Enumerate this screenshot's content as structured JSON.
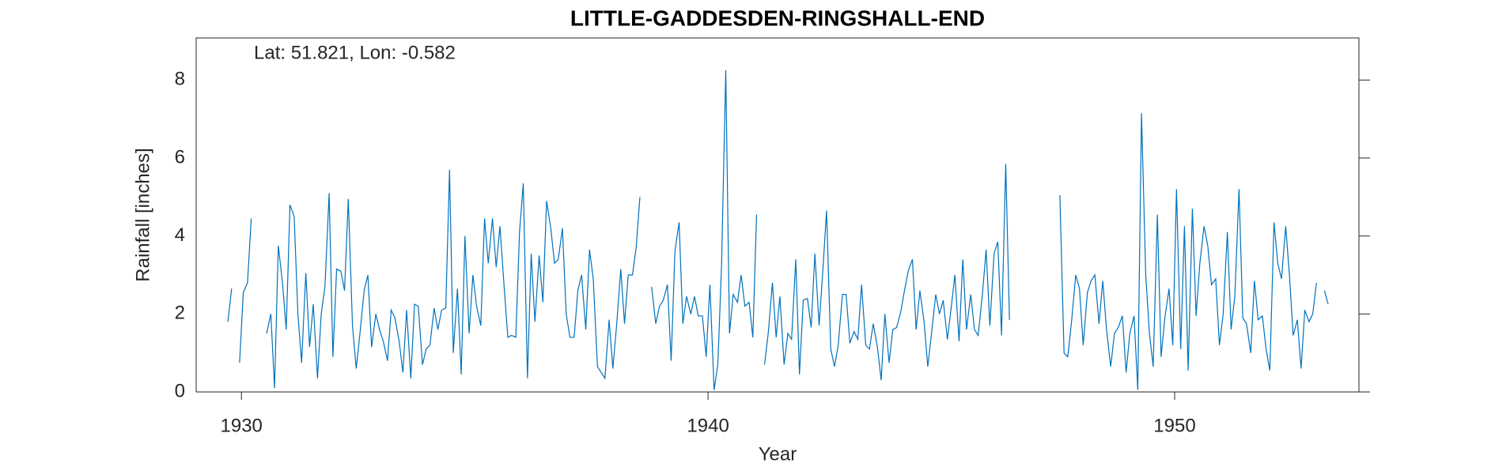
{
  "chart_data": {
    "type": "line",
    "title": "LITTLE-GADDESDEN-RINGSHALL-END",
    "annotation": "Lat: 51.821, Lon: -0.582",
    "x_label": "Year",
    "y_label": "Rainfall [inches]",
    "xlim": [
      1929.03,
      1953.95
    ],
    "ylim": [
      0,
      9.08
    ],
    "xticks": [
      1930,
      1940,
      1950
    ],
    "yticks": [
      0,
      2,
      4,
      6,
      8
    ],
    "grid": false,
    "x": [
      1929.71,
      1929.79,
      1929.88,
      1929.96,
      1930.04,
      1930.13,
      1930.21,
      1930.29,
      1930.38,
      1930.46,
      1930.54,
      1930.63,
      1930.71,
      1930.79,
      1930.88,
      1930.96,
      1931.04,
      1931.13,
      1931.21,
      1931.29,
      1931.38,
      1931.46,
      1931.54,
      1931.63,
      1931.71,
      1931.79,
      1931.88,
      1931.96,
      1932.04,
      1932.13,
      1932.21,
      1932.29,
      1932.38,
      1932.46,
      1932.54,
      1932.63,
      1932.71,
      1932.79,
      1932.88,
      1932.96,
      1933.04,
      1933.13,
      1933.21,
      1933.29,
      1933.38,
      1933.46,
      1933.54,
      1933.63,
      1933.71,
      1933.79,
      1933.88,
      1933.96,
      1934.04,
      1934.13,
      1934.21,
      1934.29,
      1934.38,
      1934.46,
      1934.54,
      1934.63,
      1934.71,
      1934.79,
      1934.88,
      1934.96,
      1935.04,
      1935.13,
      1935.21,
      1935.29,
      1935.38,
      1935.46,
      1935.54,
      1935.63,
      1935.71,
      1935.79,
      1935.88,
      1935.96,
      1936.04,
      1936.13,
      1936.21,
      1936.29,
      1936.38,
      1936.46,
      1936.54,
      1936.63,
      1936.71,
      1936.79,
      1936.88,
      1936.96,
      1937.04,
      1937.13,
      1937.21,
      1937.29,
      1937.38,
      1937.46,
      1937.54,
      1937.63,
      1937.71,
      1937.79,
      1937.88,
      1937.96,
      1938.04,
      1938.13,
      1938.21,
      1938.29,
      1938.38,
      1938.46,
      1938.54,
      1938.63,
      1938.71,
      1938.79,
      1938.88,
      1938.96,
      1939.04,
      1939.13,
      1939.21,
      1939.29,
      1939.38,
      1939.46,
      1939.54,
      1939.63,
      1939.71,
      1939.79,
      1939.88,
      1939.96,
      1940.04,
      1940.13,
      1940.21,
      1940.29,
      1940.38,
      1940.46,
      1940.54,
      1940.63,
      1940.71,
      1940.79,
      1940.88,
      1940.96,
      1941.04,
      1941.13,
      1941.21,
      1941.29,
      1941.38,
      1941.46,
      1941.54,
      1941.63,
      1941.71,
      1941.79,
      1941.88,
      1941.96,
      1942.04,
      1942.13,
      1942.21,
      1942.29,
      1942.38,
      1942.46,
      1942.54,
      1942.63,
      1942.71,
      1942.79,
      1942.88,
      1942.96,
      1943.04,
      1943.13,
      1943.21,
      1943.29,
      1943.38,
      1943.46,
      1943.54,
      1943.63,
      1943.71,
      1943.79,
      1943.88,
      1943.96,
      1944.04,
      1944.13,
      1944.21,
      1944.29,
      1944.38,
      1944.46,
      1944.54,
      1944.63,
      1944.71,
      1944.79,
      1944.88,
      1944.96,
      1945.04,
      1945.13,
      1945.21,
      1945.29,
      1945.38,
      1945.46,
      1945.54,
      1945.63,
      1945.71,
      1945.79,
      1945.88,
      1945.96,
      1946.04,
      1946.13,
      1946.21,
      1946.29,
      1946.38,
      1946.46,
      1946.54,
      1946.63,
      1946.71,
      1946.79,
      1946.88,
      1946.96,
      1947.04,
      1947.13,
      1947.21,
      1947.29,
      1947.38,
      1947.46,
      1947.54,
      1947.63,
      1947.71,
      1947.79,
      1947.88,
      1947.96,
      1948.04,
      1948.13,
      1948.21,
      1948.29,
      1948.38,
      1948.46,
      1948.54,
      1948.63,
      1948.71,
      1948.79,
      1948.88,
      1948.96,
      1949.04,
      1949.13,
      1949.21,
      1949.29,
      1949.38,
      1949.46,
      1949.54,
      1949.63,
      1949.71,
      1949.79,
      1949.88,
      1949.96,
      1950.04,
      1950.13,
      1950.21,
      1950.29,
      1950.38,
      1950.46,
      1950.54,
      1950.63,
      1950.71,
      1950.79,
      1950.88,
      1950.96,
      1951.04,
      1951.13,
      1951.21,
      1951.29,
      1951.38,
      1951.46,
      1951.54,
      1951.63,
      1951.71,
      1951.79,
      1951.88,
      1951.96,
      1952.04,
      1952.13,
      1952.21,
      1952.29,
      1952.38,
      1952.46,
      1952.54,
      1952.63,
      1952.71,
      1952.79,
      1952.88,
      1952.96,
      1953.04,
      1953.13,
      1953.21,
      1953.29
    ],
    "series": [
      {
        "name": "Rainfall",
        "color": "#0072BD",
        "values": [
          1.8,
          2.65,
          null,
          0.75,
          2.55,
          2.8,
          4.45,
          null,
          null,
          null,
          1.5,
          2.0,
          0.1,
          3.75,
          2.8,
          1.6,
          4.8,
          4.5,
          2.0,
          0.75,
          3.05,
          1.15,
          2.25,
          0.35,
          2.0,
          2.7,
          5.1,
          0.9,
          3.15,
          3.1,
          2.6,
          4.95,
          1.7,
          0.6,
          1.5,
          2.6,
          3.0,
          1.15,
          2.0,
          1.6,
          1.3,
          0.8,
          2.1,
          1.9,
          1.3,
          0.5,
          2.1,
          0.35,
          2.25,
          2.2,
          0.7,
          1.1,
          1.2,
          2.15,
          1.6,
          2.1,
          2.15,
          5.7,
          1.0,
          2.65,
          0.45,
          4.0,
          1.5,
          3.0,
          2.2,
          1.7,
          4.45,
          3.3,
          4.45,
          3.2,
          4.25,
          2.7,
          1.4,
          1.45,
          1.4,
          4.1,
          5.35,
          0.35,
          3.55,
          1.8,
          3.5,
          2.3,
          4.9,
          4.2,
          3.3,
          3.4,
          4.2,
          2.0,
          1.4,
          1.4,
          2.6,
          3.0,
          1.6,
          3.65,
          2.9,
          0.65,
          0.5,
          0.35,
          1.85,
          0.6,
          1.7,
          3.15,
          1.75,
          3.0,
          3.0,
          3.7,
          5.0,
          null,
          null,
          2.7,
          1.75,
          2.2,
          2.35,
          2.75,
          0.8,
          3.6,
          4.35,
          1.75,
          2.45,
          2.0,
          2.45,
          1.95,
          1.95,
          0.9,
          2.75,
          0.05,
          0.7,
          3.25,
          8.25,
          1.5,
          2.5,
          2.3,
          3.0,
          2.2,
          2.3,
          1.4,
          4.55,
          null,
          0.7,
          1.5,
          2.8,
          1.4,
          2.45,
          0.7,
          1.5,
          1.35,
          3.4,
          0.45,
          2.35,
          2.4,
          1.65,
          3.55,
          1.7,
          3.1,
          4.65,
          1.1,
          0.65,
          1.2,
          2.5,
          2.5,
          1.25,
          1.55,
          1.35,
          2.75,
          1.2,
          1.1,
          1.75,
          1.15,
          0.3,
          2.0,
          0.75,
          1.6,
          1.65,
          2.05,
          2.6,
          3.1,
          3.4,
          1.6,
          2.6,
          1.8,
          0.65,
          1.5,
          2.5,
          2.0,
          2.35,
          1.35,
          2.15,
          3.0,
          1.3,
          3.4,
          1.6,
          2.5,
          1.6,
          1.45,
          2.5,
          3.65,
          1.7,
          3.55,
          3.85,
          1.45,
          5.85,
          1.85,
          null,
          null,
          null,
          null,
          null,
          null,
          null,
          null,
          null,
          null,
          null,
          null,
          5.05,
          1.0,
          0.9,
          1.8,
          3.0,
          2.65,
          1.2,
          2.55,
          2.85,
          3.0,
          1.75,
          2.85,
          1.6,
          0.65,
          1.5,
          1.65,
          1.95,
          0.5,
          1.5,
          1.95,
          0.05,
          7.15,
          3.0,
          1.5,
          0.65,
          4.55,
          0.9,
          1.9,
          2.65,
          1.2,
          5.2,
          1.1,
          4.25,
          0.55,
          4.7,
          1.95,
          3.3,
          4.25,
          3.75,
          2.75,
          2.9,
          1.2,
          2.0,
          4.1,
          1.6,
          2.45,
          5.2,
          1.9,
          1.75,
          1.0,
          2.85,
          1.85,
          1.95,
          1.1,
          0.55,
          4.35,
          3.3,
          2.9,
          4.25,
          3.0,
          1.45,
          1.85,
          0.6,
          2.1,
          1.8,
          2.0,
          2.8,
          null,
          2.6,
          2.25
        ]
      }
    ]
  }
}
